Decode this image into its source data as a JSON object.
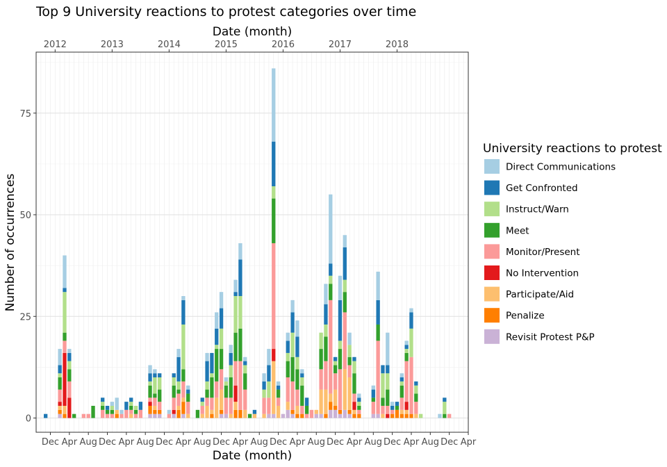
{
  "chart_data": {
    "type": "bar",
    "stacked": true,
    "title": "Top 9  University reactions to protest categories over time",
    "xlabel": "Date (month)",
    "xlabel_top": "Date (month)",
    "ylabel": "Number of occurrences",
    "ylim": [
      -3.5,
      90
    ],
    "y_ticks": [
      0,
      25,
      50,
      75
    ],
    "x_range": [
      "2011-09",
      "2019-04"
    ],
    "x_ticks_bottom": [
      {
        "date": "2011-12",
        "label": "Dec"
      },
      {
        "date": "2012-04",
        "label": "Apr"
      },
      {
        "date": "2012-08",
        "label": "Aug"
      },
      {
        "date": "2012-12",
        "label": "Dec"
      },
      {
        "date": "2013-04",
        "label": "Apr"
      },
      {
        "date": "2013-08",
        "label": "Aug"
      },
      {
        "date": "2013-12",
        "label": "Dec"
      },
      {
        "date": "2014-04",
        "label": "Apr"
      },
      {
        "date": "2014-08",
        "label": "Aug"
      },
      {
        "date": "2014-12",
        "label": "Dec"
      },
      {
        "date": "2015-04",
        "label": "Apr"
      },
      {
        "date": "2015-08",
        "label": "Aug"
      },
      {
        "date": "2015-12",
        "label": "Dec"
      },
      {
        "date": "2016-04",
        "label": "Apr"
      },
      {
        "date": "2016-08",
        "label": "Aug"
      },
      {
        "date": "2016-12",
        "label": "Dec"
      },
      {
        "date": "2017-04",
        "label": "Apr"
      },
      {
        "date": "2017-08",
        "label": "Aug"
      },
      {
        "date": "2017-12",
        "label": "Dec"
      },
      {
        "date": "2018-04",
        "label": "Apr"
      },
      {
        "date": "2018-08",
        "label": "Aug"
      },
      {
        "date": "2018-12",
        "label": "Dec"
      },
      {
        "date": "2019-04",
        "label": "Apr"
      }
    ],
    "x_ticks_top": [
      {
        "date": "2012-01",
        "label": "2012"
      },
      {
        "date": "2013-01",
        "label": "2013"
      },
      {
        "date": "2014-01",
        "label": "2014"
      },
      {
        "date": "2015-01",
        "label": "2015"
      },
      {
        "date": "2016-01",
        "label": "2016"
      },
      {
        "date": "2017-01",
        "label": "2017"
      },
      {
        "date": "2018-01",
        "label": "2018"
      }
    ],
    "grid": true,
    "legend": {
      "title": "University reactions to protest",
      "position": "right"
    },
    "series": [
      {
        "name": "Revisit Protest P&P",
        "color": "#CAB2D6"
      },
      {
        "name": "Penalize",
        "color": "#FF7F00"
      },
      {
        "name": "Participate/Aid",
        "color": "#FDBF6F"
      },
      {
        "name": "No Intervention",
        "color": "#E31A1C"
      },
      {
        "name": "Monitor/Present",
        "color": "#FB9A99"
      },
      {
        "name": "Meet",
        "color": "#33A02C"
      },
      {
        "name": "Instruct/Warn",
        "color": "#B2DF8A"
      },
      {
        "name": "Get Confronted",
        "color": "#1F78B4"
      },
      {
        "name": "Direct Communications",
        "color": "#A6CEE3"
      }
    ],
    "months": [
      {
        "month": "2011-11",
        "values": [
          0,
          0,
          0,
          0,
          0,
          0,
          0,
          1,
          0
        ]
      },
      {
        "month": "2012-02",
        "values": [
          1,
          1,
          1,
          1,
          3,
          3,
          1,
          2,
          4
        ]
      },
      {
        "month": "2012-03",
        "values": [
          0,
          1,
          2,
          13,
          3,
          2,
          10,
          1,
          8
        ]
      },
      {
        "month": "2012-04",
        "values": [
          0,
          0,
          0,
          5,
          4,
          3,
          2,
          2,
          1
        ]
      },
      {
        "month": "2012-05",
        "values": [
          0,
          0,
          0,
          0,
          0,
          1,
          0,
          0,
          0
        ]
      },
      {
        "month": "2012-07",
        "values": [
          0,
          0,
          0,
          0,
          1,
          0,
          0,
          0,
          0
        ]
      },
      {
        "month": "2012-08",
        "values": [
          0,
          0,
          0,
          0,
          1,
          0,
          0,
          0,
          0
        ]
      },
      {
        "month": "2012-09",
        "values": [
          0,
          0,
          0,
          0,
          0,
          3,
          0,
          0,
          0
        ]
      },
      {
        "month": "2012-11",
        "values": [
          0,
          0,
          0,
          0,
          2,
          1,
          1,
          1,
          0
        ]
      },
      {
        "month": "2012-12",
        "values": [
          0,
          0,
          0,
          0,
          1,
          1,
          0,
          1,
          0
        ]
      },
      {
        "month": "2013-01",
        "values": [
          0,
          0,
          0,
          0,
          1,
          1,
          1,
          0,
          1
        ]
      },
      {
        "month": "2013-02",
        "values": [
          0,
          1,
          1,
          0,
          0,
          0,
          0,
          0,
          3
        ]
      },
      {
        "month": "2013-03",
        "values": [
          0,
          0,
          0,
          0,
          1,
          0,
          0,
          0,
          1
        ]
      },
      {
        "month": "2013-04",
        "values": [
          0,
          0,
          0,
          0,
          2,
          0,
          0,
          2,
          0
        ]
      },
      {
        "month": "2013-05",
        "values": [
          0,
          0,
          1,
          0,
          1,
          1,
          1,
          1,
          0
        ]
      },
      {
        "month": "2013-06",
        "values": [
          0,
          0,
          0,
          0,
          1,
          1,
          1,
          0,
          0
        ]
      },
      {
        "month": "2013-07",
        "values": [
          0,
          0,
          0,
          0,
          2,
          0,
          0,
          2,
          0
        ]
      },
      {
        "month": "2013-09",
        "values": [
          1,
          2,
          0,
          1,
          1,
          3,
          1,
          2,
          2
        ]
      },
      {
        "month": "2013-10",
        "values": [
          1,
          1,
          1,
          0,
          2,
          1,
          4,
          1,
          1
        ]
      },
      {
        "month": "2013-11",
        "values": [
          1,
          1,
          0,
          0,
          2,
          3,
          3,
          1,
          0
        ]
      },
      {
        "month": "2014-01",
        "values": [
          0,
          0,
          0,
          0,
          1,
          0,
          0,
          0,
          1
        ]
      },
      {
        "month": "2014-02",
        "values": [
          1,
          0,
          0,
          1,
          3,
          3,
          2,
          1,
          0
        ]
      },
      {
        "month": "2014-03",
        "values": [
          0,
          2,
          1,
          0,
          3,
          1,
          2,
          6,
          2
        ]
      },
      {
        "month": "2014-04",
        "values": [
          1,
          3,
          1,
          0,
          4,
          3,
          11,
          6,
          1
        ]
      },
      {
        "month": "2014-05",
        "values": [
          0,
          0,
          1,
          0,
          3,
          2,
          0,
          1,
          1
        ]
      },
      {
        "month": "2014-07",
        "values": [
          0,
          0,
          0,
          0,
          0,
          2,
          0,
          0,
          0
        ]
      },
      {
        "month": "2014-08",
        "values": [
          0,
          0,
          1,
          0,
          2,
          0,
          1,
          1,
          0
        ]
      },
      {
        "month": "2014-09",
        "values": [
          0,
          0,
          3,
          0,
          2,
          2,
          2,
          5,
          2
        ]
      },
      {
        "month": "2014-10",
        "values": [
          0,
          1,
          1,
          0,
          3,
          5,
          1,
          5,
          0
        ]
      },
      {
        "month": "2014-11",
        "values": [
          0,
          0,
          5,
          0,
          4,
          8,
          1,
          4,
          4
        ]
      },
      {
        "month": "2014-12",
        "values": [
          1,
          1,
          5,
          0,
          5,
          5,
          5,
          5,
          4
        ]
      },
      {
        "month": "2015-01",
        "values": [
          1,
          0,
          0,
          0,
          4,
          3,
          1,
          0,
          1
        ]
      },
      {
        "month": "2015-02",
        "values": [
          0,
          0,
          1,
          0,
          4,
          5,
          3,
          3,
          2
        ]
      },
      {
        "month": "2015-03",
        "values": [
          0,
          2,
          2,
          4,
          6,
          7,
          9,
          1,
          3
        ]
      },
      {
        "month": "2015-04",
        "values": [
          0,
          2,
          0,
          0,
          12,
          8,
          8,
          9,
          4
        ]
      },
      {
        "month": "2015-05",
        "values": [
          0,
          0,
          2,
          0,
          5,
          4,
          2,
          1,
          1
        ]
      },
      {
        "month": "2015-06",
        "values": [
          0,
          0,
          0,
          0,
          0,
          1,
          0,
          0,
          0
        ]
      },
      {
        "month": "2015-07",
        "values": [
          0,
          0,
          1,
          0,
          0,
          0,
          0,
          1,
          0
        ]
      },
      {
        "month": "2015-09",
        "values": [
          0,
          0,
          1,
          0,
          4,
          0,
          2,
          2,
          2
        ]
      },
      {
        "month": "2015-10",
        "values": [
          1,
          0,
          0,
          0,
          4,
          0,
          4,
          4,
          4
        ]
      },
      {
        "month": "2015-11",
        "values": [
          1,
          0,
          13,
          3,
          26,
          11,
          3,
          11,
          18
        ]
      },
      {
        "month": "2015-12",
        "values": [
          0,
          0,
          3,
          0,
          2,
          2,
          0,
          1,
          1
        ]
      },
      {
        "month": "2016-01",
        "values": [
          1,
          0,
          0,
          0,
          0,
          0,
          0,
          0,
          0
        ]
      },
      {
        "month": "2016-02",
        "values": [
          2,
          0,
          2,
          0,
          6,
          4,
          2,
          3,
          2
        ]
      },
      {
        "month": "2016-03",
        "values": [
          1,
          1,
          0,
          0,
          7,
          6,
          6,
          5,
          3
        ]
      },
      {
        "month": "2016-04",
        "values": [
          0,
          1,
          2,
          0,
          4,
          5,
          3,
          5,
          4
        ]
      },
      {
        "month": "2016-05",
        "values": [
          0,
          1,
          0,
          0,
          2,
          5,
          2,
          1,
          1
        ]
      },
      {
        "month": "2016-06",
        "values": [
          0,
          0,
          0,
          0,
          1,
          2,
          0,
          2,
          0
        ]
      },
      {
        "month": "2016-07",
        "values": [
          0,
          0,
          0,
          0,
          2,
          0,
          0,
          0,
          0
        ]
      },
      {
        "month": "2016-08",
        "values": [
          1,
          0,
          1,
          0,
          0,
          0,
          0,
          0,
          0
        ]
      },
      {
        "month": "2016-09",
        "values": [
          1,
          0,
          6,
          0,
          5,
          5,
          4,
          0,
          0
        ]
      },
      {
        "month": "2016-10",
        "values": [
          0,
          1,
          6,
          0,
          7,
          6,
          3,
          5,
          5
        ]
      },
      {
        "month": "2016-11",
        "values": [
          2,
          2,
          2,
          0,
          23,
          4,
          2,
          3,
          17
        ]
      },
      {
        "month": "2016-12",
        "values": [
          2,
          1,
          4,
          0,
          4,
          2,
          1,
          1,
          0
        ]
      },
      {
        "month": "2017-01",
        "values": [
          1,
          1,
          0,
          0,
          10,
          5,
          2,
          10,
          6
        ]
      },
      {
        "month": "2017-02",
        "values": [
          2,
          0,
          10,
          0,
          14,
          5,
          3,
          8,
          3
        ]
      },
      {
        "month": "2017-03",
        "values": [
          1,
          1,
          8,
          0,
          3,
          2,
          3,
          0,
          3
        ]
      },
      {
        "month": "2017-04",
        "values": [
          0,
          1,
          1,
          2,
          2,
          5,
          3,
          1,
          0
        ]
      },
      {
        "month": "2017-05",
        "values": [
          0,
          1,
          0,
          0,
          1,
          1,
          1,
          1,
          1
        ]
      },
      {
        "month": "2017-08",
        "values": [
          1,
          0,
          0,
          0,
          3,
          1,
          0,
          2,
          1
        ]
      },
      {
        "month": "2017-09",
        "values": [
          1,
          0,
          0,
          0,
          18,
          4,
          0,
          6,
          7
        ]
      },
      {
        "month": "2017-10",
        "values": [
          0,
          0,
          1,
          0,
          2,
          2,
          6,
          2,
          0
        ]
      },
      {
        "month": "2017-11",
        "values": [
          0,
          0,
          0,
          1,
          2,
          4,
          4,
          2,
          8
        ]
      },
      {
        "month": "2017-12",
        "values": [
          0,
          1,
          0,
          0,
          1,
          0,
          0,
          1,
          1
        ]
      },
      {
        "month": "2018-01",
        "values": [
          0,
          2,
          0,
          0,
          0,
          1,
          0,
          1,
          0
        ]
      },
      {
        "month": "2018-02",
        "values": [
          0,
          1,
          1,
          0,
          3,
          3,
          1,
          1,
          1
        ]
      },
      {
        "month": "2018-03",
        "values": [
          0,
          1,
          1,
          2,
          10,
          2,
          1,
          1,
          1
        ]
      },
      {
        "month": "2018-04",
        "values": [
          0,
          1,
          0,
          0,
          14,
          0,
          7,
          4,
          1
        ]
      },
      {
        "month": "2018-05",
        "values": [
          0,
          0,
          1,
          0,
          3,
          2,
          2,
          1,
          0
        ]
      },
      {
        "month": "2018-06",
        "values": [
          0,
          0,
          0,
          0,
          0,
          0,
          1,
          0,
          0
        ]
      },
      {
        "month": "2018-10",
        "values": [
          0,
          0,
          0,
          0,
          0,
          0,
          0,
          0,
          1
        ]
      },
      {
        "month": "2018-11",
        "values": [
          0,
          0,
          0,
          0,
          0,
          1,
          3,
          1,
          0
        ]
      },
      {
        "month": "2018-12",
        "values": [
          0,
          0,
          0,
          0,
          1,
          0,
          0,
          0,
          0
        ]
      }
    ]
  }
}
